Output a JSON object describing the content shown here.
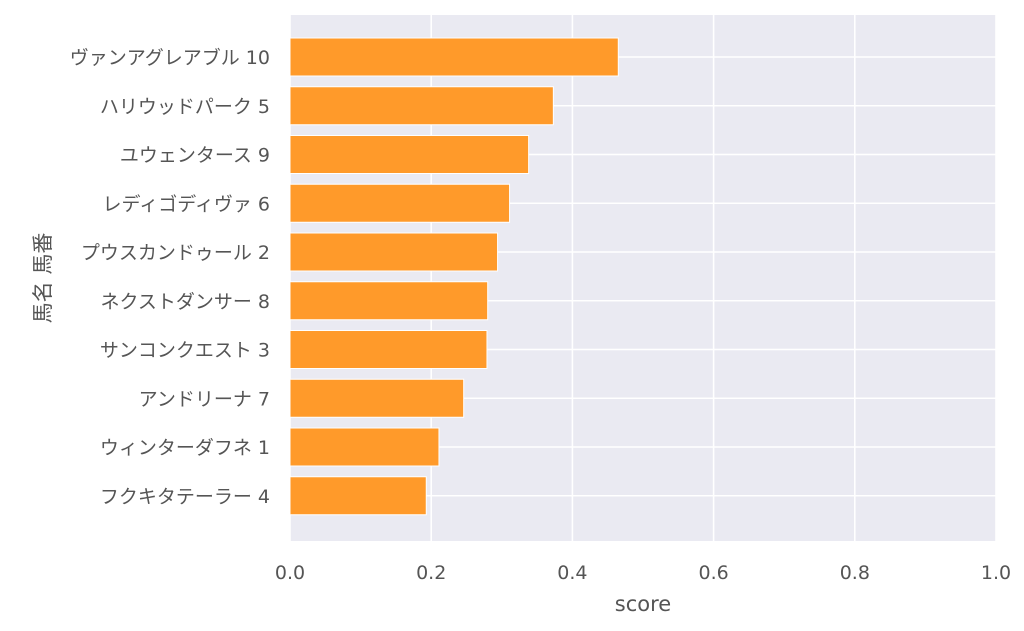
{
  "chart_data": {
    "type": "bar",
    "orientation": "horizontal",
    "categories": [
      "ヴァンアグレアブル 10",
      "ハリウッドパーク 5",
      "ユウェンタース 9",
      "レディゴディヴァ 6",
      "プウスカンドゥール 2",
      "ネクストダンサー 8",
      "サンコンクエスト 3",
      "アンドリーナ 7",
      "ウィンターダフネ 1",
      "フクキタテーラー 4"
    ],
    "values": [
      0.465,
      0.373,
      0.338,
      0.311,
      0.294,
      0.28,
      0.279,
      0.246,
      0.211,
      0.193
    ],
    "xlabel": "score",
    "ylabel": "馬名 馬番",
    "xlim": [
      0,
      1.0
    ],
    "xticks": [
      "0.0",
      "0.2",
      "0.4",
      "0.6",
      "0.8",
      "1.0"
    ],
    "grid": true,
    "bar_color": "#ff9a2a",
    "plot_background": "#eaeaf2",
    "legend": "none"
  }
}
